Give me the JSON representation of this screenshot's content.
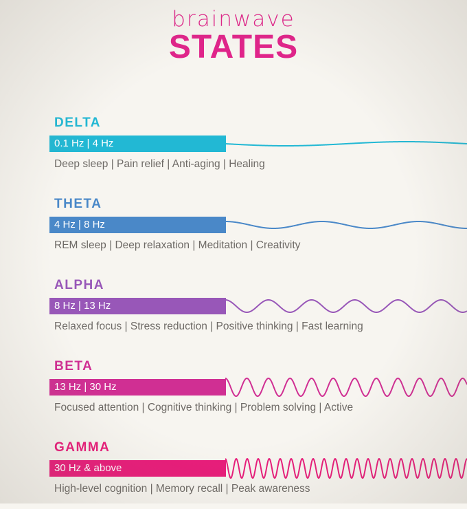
{
  "header": {
    "title_top": "brainwave",
    "title_main": "STATES"
  },
  "states": [
    {
      "name": "DELTA",
      "range": "0.1 Hz | 4 Hz",
      "description": "Deep sleep  |  Pain relief  |  Anti-aging  |  Healing",
      "color": "#22b8d4",
      "wave": {
        "amplitude": 3,
        "cycles": 1,
        "phase": 0.5
      }
    },
    {
      "name": "THETA",
      "range": "4 Hz | 8 Hz",
      "description": "REM sleep  |  Deep relaxation  |  Meditation  |  Creativity",
      "color": "#4a88c8",
      "wave": {
        "amplitude": 5,
        "cycles": 2.5,
        "phase": 0
      }
    },
    {
      "name": "ALPHA",
      "range": "8 Hz | 13 Hz",
      "description": "Relaxed focus  |  Stress reduction  |  Positive thinking  |  Fast learning",
      "color": "#9857b8",
      "wave": {
        "amplitude": 9,
        "cycles": 5.6,
        "phase": 0
      }
    },
    {
      "name": "BETA",
      "range": "13 Hz | 30 Hz",
      "description": "Focused attention  |  Cognitive thinking  |  Problem solving  |  Active",
      "color": "#d02f93",
      "wave": {
        "amplitude": 13,
        "cycles": 11.2,
        "phase": 0
      }
    },
    {
      "name": "GAMMA",
      "range": "30 Hz & above",
      "description": "High-level cognition  |  Memory recall  |  Peak awareness",
      "color": "#e81c7a",
      "wave": {
        "amplitude": 14,
        "cycles": 22,
        "phase": 0
      }
    }
  ]
}
